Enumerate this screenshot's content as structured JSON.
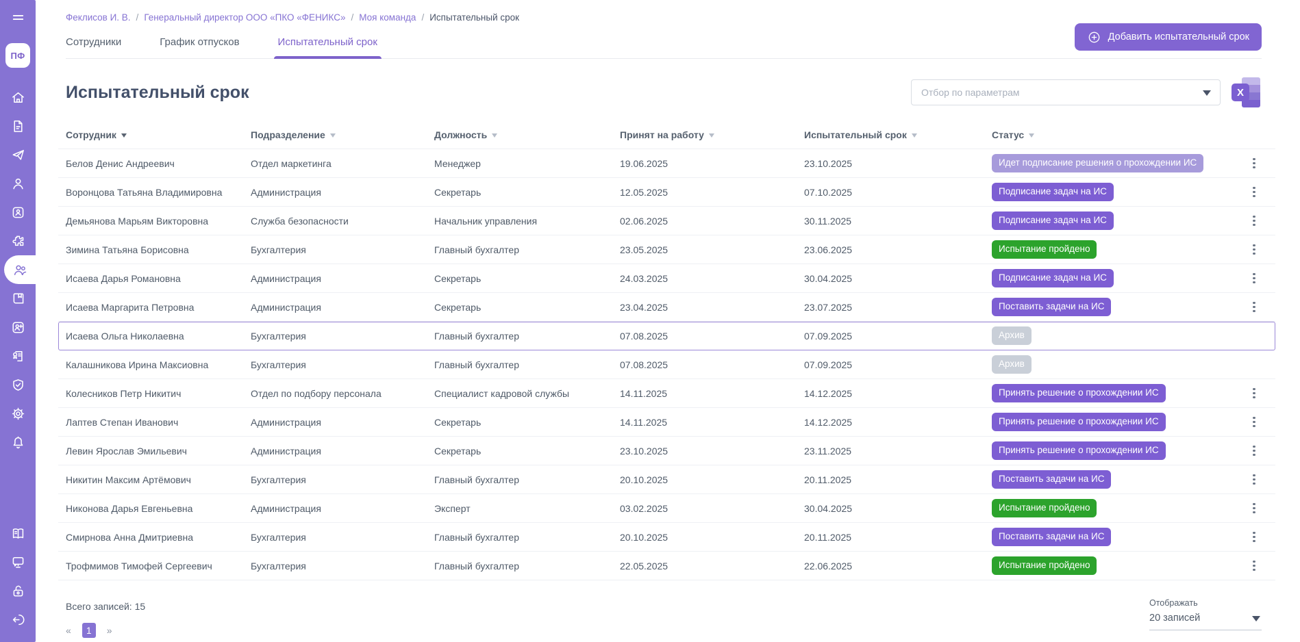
{
  "colors": {
    "accent": "#8673d3",
    "badge_purple": "#7d5ed3",
    "badge_light_purple": "#a79bdb",
    "badge_green": "#2ca32c",
    "badge_gray": "#c9cfd8"
  },
  "sidebar": {
    "logo": "ПФ",
    "items": [
      {
        "icon": "home-icon",
        "active": false
      },
      {
        "icon": "document-icon",
        "active": false
      },
      {
        "icon": "send-icon",
        "active": false
      },
      {
        "icon": "user-icon",
        "active": false
      },
      {
        "icon": "id-badge-icon",
        "active": false
      },
      {
        "icon": "puzzle-icon",
        "active": false
      },
      {
        "icon": "team-icon",
        "active": true
      },
      {
        "icon": "book-bookmark-icon",
        "active": false
      },
      {
        "icon": "user-plus-icon",
        "active": false
      },
      {
        "icon": "certificate-icon",
        "active": false
      },
      {
        "icon": "shield-check-icon",
        "active": false
      },
      {
        "icon": "gear-icon",
        "active": false
      },
      {
        "icon": "bell-icon",
        "active": false
      }
    ],
    "bottom_items": [
      {
        "icon": "open-book-icon"
      },
      {
        "icon": "support-chat-icon"
      },
      {
        "icon": "lock-open-icon"
      },
      {
        "icon": "logout-icon"
      }
    ]
  },
  "breadcrumb": {
    "items": [
      {
        "label": "Феклисов И. В.",
        "current": false
      },
      {
        "label": "Генеральный директор ООО «ПКО «ФЕНИКС»",
        "current": false
      },
      {
        "label": "Моя команда",
        "current": false
      },
      {
        "label": "Испытательный срок",
        "current": true
      }
    ]
  },
  "tabs": [
    {
      "label": "Сотрудники",
      "active": false
    },
    {
      "label": "График отпусков",
      "active": false
    },
    {
      "label": "Испытательный срок",
      "active": true
    }
  ],
  "add_button": {
    "label": "Добавить испытательный срок"
  },
  "page": {
    "title": "Испытательный срок"
  },
  "filter": {
    "placeholder": "Отбор по параметрам"
  },
  "export": {
    "icon": "excel-icon",
    "letter": "X"
  },
  "table": {
    "columns": [
      {
        "label": "Сотрудник",
        "sort": "active"
      },
      {
        "label": "Подразделение",
        "sort": "inactive"
      },
      {
        "label": "Должность",
        "sort": "inactive"
      },
      {
        "label": "Принят на работу",
        "sort": "inactive"
      },
      {
        "label": "Испытательный срок",
        "sort": "inactive"
      },
      {
        "label": "Статус",
        "sort": "inactive"
      }
    ],
    "rows": [
      {
        "employee": "Белов Денис Андреевич",
        "department": "Отдел маркетинга",
        "position": "Менеджер",
        "hired": "19.06.2025",
        "probation_end": "23.10.2025",
        "status": {
          "label": "Идет подписание решения о прохождении ИС",
          "type": "light"
        },
        "menu": true,
        "selected": false
      },
      {
        "employee": "Воронцова Татьяна Владимировна",
        "department": "Администрация",
        "position": "Секретарь",
        "hired": "12.05.2025",
        "probation_end": "07.10.2025",
        "status": {
          "label": "Подписание задач на ИС",
          "type": "action"
        },
        "menu": true,
        "selected": false
      },
      {
        "employee": "Демьянова Марьям Викторовна",
        "department": "Служба безопасности",
        "position": "Начальник управления",
        "hired": "02.06.2025",
        "probation_end": "30.11.2025",
        "status": {
          "label": "Подписание задач на ИС",
          "type": "action"
        },
        "menu": true,
        "selected": false
      },
      {
        "employee": "Зимина Татьяна Борисовна",
        "department": "Бухгалтерия",
        "position": "Главный бухгалтер",
        "hired": "23.05.2025",
        "probation_end": "23.06.2025",
        "status": {
          "label": "Испытание пройдено",
          "type": "success"
        },
        "menu": true,
        "selected": false
      },
      {
        "employee": "Исаева Дарья Романовна",
        "department": "Администрация",
        "position": "Секретарь",
        "hired": "24.03.2025",
        "probation_end": "30.04.2025",
        "status": {
          "label": "Подписание задач на ИС",
          "type": "action"
        },
        "menu": true,
        "selected": false
      },
      {
        "employee": "Исаева Маргарита Петровна",
        "department": "Администрация",
        "position": "Секретарь",
        "hired": "23.04.2025",
        "probation_end": "23.07.2025",
        "status": {
          "label": "Поставить задачи на ИС",
          "type": "action"
        },
        "menu": true,
        "selected": false
      },
      {
        "employee": "Исаева Ольга Николаевна",
        "department": "Бухгалтерия",
        "position": "Главный бухгалтер",
        "hired": "07.08.2025",
        "probation_end": "07.09.2025",
        "status": {
          "label": "Архив",
          "type": "archive"
        },
        "menu": false,
        "selected": true
      },
      {
        "employee": "Калашникова Ирина Максиовна",
        "department": "Бухгалтерия",
        "position": "Главный бухгалтер",
        "hired": "07.08.2025",
        "probation_end": "07.09.2025",
        "status": {
          "label": "Архив",
          "type": "archive"
        },
        "menu": false,
        "selected": false
      },
      {
        "employee": "Колесников Петр Никитич",
        "department": "Отдел по подбору персонала",
        "position": "Специалист кадровой службы",
        "hired": "14.11.2025",
        "probation_end": "14.12.2025",
        "status": {
          "label": "Принять решение о прохождении ИС",
          "type": "action"
        },
        "menu": true,
        "selected": false
      },
      {
        "employee": "Лаптев Степан Иванович",
        "department": "Администрация",
        "position": "Секретарь",
        "hired": "14.11.2025",
        "probation_end": "14.12.2025",
        "status": {
          "label": "Принять решение о прохождении ИС",
          "type": "action"
        },
        "menu": true,
        "selected": false
      },
      {
        "employee": "Левин Ярослав Эмильевич",
        "department": "Администрация",
        "position": "Секретарь",
        "hired": "23.10.2025",
        "probation_end": "23.11.2025",
        "status": {
          "label": "Принять решение о прохождении ИС",
          "type": "action"
        },
        "menu": true,
        "selected": false
      },
      {
        "employee": "Никитин Максим Артёмович",
        "department": "Бухгалтерия",
        "position": "Главный бухгалтер",
        "hired": "20.10.2025",
        "probation_end": "20.11.2025",
        "status": {
          "label": "Поставить задачи на ИС",
          "type": "action"
        },
        "menu": true,
        "selected": false
      },
      {
        "employee": "Никонова Дарья Евгеньевна",
        "department": "Администрация",
        "position": "Эксперт",
        "hired": "03.02.2025",
        "probation_end": "30.04.2025",
        "status": {
          "label": "Испытание пройдено",
          "type": "success"
        },
        "menu": true,
        "selected": false
      },
      {
        "employee": "Смирнова Анна Дмитриевна",
        "department": "Бухгалтерия",
        "position": "Главный бухгалтер",
        "hired": "20.10.2025",
        "probation_end": "20.11.2025",
        "status": {
          "label": "Поставить задачи на ИС",
          "type": "action"
        },
        "menu": true,
        "selected": false
      },
      {
        "employee": "Трофмимов Тимофей Сергеевич",
        "department": "Бухгалтерия",
        "position": "Главный бухгалтер",
        "hired": "22.05.2025",
        "probation_end": "22.06.2025",
        "status": {
          "label": "Испытание пройдено",
          "type": "success"
        },
        "menu": true,
        "selected": false
      }
    ]
  },
  "footer": {
    "total": "Всего записей: 15",
    "pagination": {
      "prev": "«",
      "active_page": "1",
      "next": "»"
    },
    "page_size": {
      "label": "Отображать",
      "value": "20 записей"
    }
  }
}
